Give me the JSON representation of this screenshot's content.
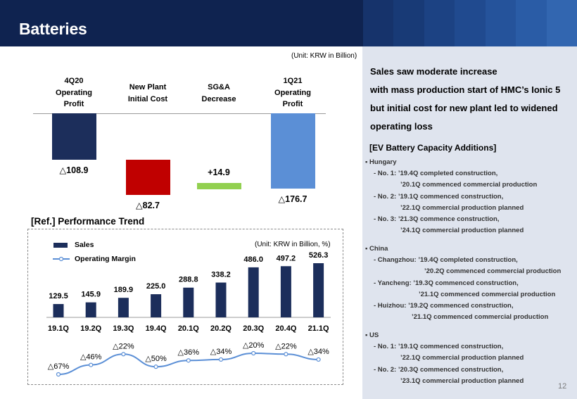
{
  "header": {
    "title": "Batteries",
    "bg_color": "#0f2350",
    "stripe_colors": [
      "#16336b",
      "#183a76",
      "#1c4283",
      "#204a8f",
      "#25539b",
      "#2a5ca6",
      "#3266b0"
    ]
  },
  "waterfall": {
    "unit": "(Unit: KRW in Billion)",
    "labels": [
      "4Q20\nOperating\nProfit",
      "New Plant\nInitial Cost",
      "SG&A\nDecrease",
      "1Q21\nOperating\nProfit"
    ],
    "value_labels": [
      "△108.9",
      "△82.7",
      "+14.9",
      "△176.7"
    ]
  },
  "reference": {
    "title": "[Ref.] Performance Trend",
    "unit": "(Unit: KRW in Billion, %)",
    "legend_sales": "Sales",
    "legend_margin": "Operating Margin",
    "sales_labels": [
      "129.5",
      "145.9",
      "189.9",
      "225.0",
      "288.8",
      "338.2",
      "486.0",
      "497.2",
      "526.3"
    ],
    "margin_labels": [
      "△67%",
      "△46%",
      "△22%",
      "△50%",
      "△36%",
      "△34%",
      "△20%",
      "△22%",
      "△34%"
    ]
  },
  "chart_data": [
    {
      "type": "bar",
      "title": "",
      "categories": [
        "4Q20 Operating Profit",
        "New Plant Initial Cost",
        "SG&A Decrease",
        "1Q21 Operating Profit"
      ],
      "values": [
        -108.9,
        -82.7,
        14.9,
        -176.7
      ],
      "colors": [
        "#1c2e5b",
        "#c00000",
        "#92d050",
        "#5b8fd6"
      ],
      "ylabel": "",
      "unit": "KRW in Billion"
    },
    {
      "type": "bar",
      "title": "[Ref.] Performance Trend",
      "categories": [
        "19.1Q",
        "19.2Q",
        "19.3Q",
        "19.4Q",
        "20.1Q",
        "20.2Q",
        "20.3Q",
        "20.4Q",
        "21.1Q"
      ],
      "series": [
        {
          "name": "Sales",
          "type": "bar",
          "values": [
            129.5,
            145.9,
            189.9,
            225.0,
            288.8,
            338.2,
            486.0,
            497.2,
            526.3
          ],
          "color": "#1c2e5b"
        },
        {
          "name": "Operating Margin",
          "type": "line",
          "values": [
            -67,
            -46,
            -22,
            -50,
            -36,
            -34,
            -20,
            -22,
            -34
          ],
          "color": "#5b8fd6"
        }
      ]
    }
  ],
  "panel": {
    "headline": [
      "Sales saw moderate increase",
      "with mass production start of HMC’s Ionic 5",
      "but initial cost for new plant led to widened",
      "operating loss"
    ],
    "ev_title": "[EV Battery Capacity Additions]",
    "sections": [
      {
        "title": "▪ Hungary",
        "items": [
          "- No. 1: ’19.4Q completed construction,",
          "’20.1Q commenced commercial production",
          "- No. 2: ’19.1Q commenced construction,",
          "’22.1Q commercial production planned",
          "- No. 3: ’21.3Q commence construction,",
          "’24.1Q commercial production planned"
        ]
      },
      {
        "title": "▪ China",
        "items": [
          "- Changzhou: ’19.4Q completed construction,",
          "’20.2Q commenced commercial production",
          "- Yancheng: ’19.3Q commenced construction,",
          "’21.1Q commenced commercial production",
          "- Huizhou: ’19.2Q commenced construction,",
          "’21.1Q commenced commercial production"
        ]
      },
      {
        "title": "▪ US",
        "items": [
          "- No. 1: ’19.1Q commenced construction,",
          "’22.1Q commercial production planned",
          "- No. 2: ’20.3Q commenced construction,",
          "’23.1Q commercial production planned"
        ]
      }
    ],
    "page_number": "12"
  }
}
